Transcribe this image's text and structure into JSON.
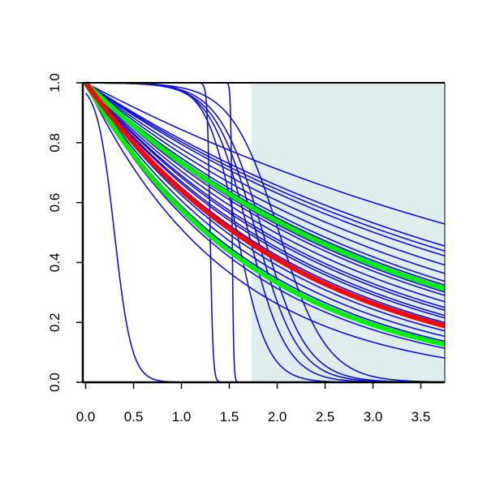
{
  "chart_data": {
    "type": "line",
    "title": "",
    "xlabel": "",
    "ylabel": "",
    "xlim": [
      -0.03,
      3.75
    ],
    "ylim": [
      0.0,
      1.0
    ],
    "x_ticks": [
      "0.0",
      "0.5",
      "1.0",
      "1.5",
      "2.0",
      "2.5",
      "3.0",
      "3.5"
    ],
    "y_ticks": [
      "0.0",
      "0.2",
      "0.4",
      "0.6",
      "0.8",
      "1.0"
    ],
    "grid": false,
    "legend": "none",
    "shaded_region": {
      "x_from": 1.73,
      "x_to": 3.75,
      "color": "#e0eded"
    },
    "colors": {
      "envelope": "#00ee00",
      "mean": "#ff0000",
      "samples": "#1010dd"
    },
    "series": [
      {
        "role": "sample",
        "kind": "exp",
        "rate": 0.17
      },
      {
        "role": "sample",
        "kind": "exp",
        "rate": 0.21
      },
      {
        "role": "sample",
        "kind": "exp",
        "rate": 0.22
      },
      {
        "role": "sample",
        "kind": "exp",
        "rate": 0.23
      },
      {
        "role": "sample",
        "kind": "exp",
        "rate": 0.25
      },
      {
        "role": "sample",
        "kind": "exp",
        "rate": 0.27
      },
      {
        "role": "sample",
        "kind": "exp",
        "rate": 0.29
      },
      {
        "role": "sample",
        "kind": "exp",
        "rate": 0.3
      },
      {
        "role": "sample",
        "kind": "exp",
        "rate": 0.32
      },
      {
        "role": "sample",
        "kind": "exp",
        "rate": 0.33
      },
      {
        "role": "sample",
        "kind": "exp",
        "rate": 0.35
      },
      {
        "role": "sample",
        "kind": "exp",
        "rate": 0.37
      },
      {
        "role": "sample",
        "kind": "exp",
        "rate": 0.38
      },
      {
        "role": "sample",
        "kind": "exp",
        "rate": 0.4
      },
      {
        "role": "sample",
        "kind": "exp",
        "rate": 0.41
      },
      {
        "role": "sample",
        "kind": "exp",
        "rate": 0.43
      },
      {
        "role": "sample",
        "kind": "exp",
        "rate": 0.45
      },
      {
        "role": "sample",
        "kind": "exp",
        "rate": 0.47
      },
      {
        "role": "sample",
        "kind": "exp",
        "rate": 0.5
      },
      {
        "role": "sample",
        "kind": "exp",
        "rate": 0.53
      },
      {
        "role": "sample",
        "kind": "exp",
        "rate": 0.58
      },
      {
        "role": "sample",
        "kind": "exp",
        "rate": 0.67
      },
      {
        "role": "sample",
        "kind": "logistic",
        "mid": 0.3,
        "scale": 0.09
      },
      {
        "role": "sample",
        "kind": "logistic",
        "mid": 1.3,
        "scale": 0.015
      },
      {
        "role": "sample",
        "kind": "logistic",
        "mid": 1.53,
        "scale": 0.008
      },
      {
        "role": "sample",
        "kind": "logistic",
        "mid": 1.58,
        "scale": 0.16
      },
      {
        "role": "sample",
        "kind": "logistic",
        "mid": 1.7,
        "scale": 0.2
      },
      {
        "role": "sample",
        "kind": "logistic",
        "mid": 1.78,
        "scale": 0.22
      },
      {
        "role": "sample",
        "kind": "logistic",
        "mid": 1.85,
        "scale": 0.23
      },
      {
        "role": "sample",
        "kind": "logistic",
        "mid": 2.02,
        "scale": 0.25
      },
      {
        "role": "envelope",
        "kind": "exp",
        "rate": 0.31
      },
      {
        "role": "envelope",
        "kind": "exp",
        "rate": 0.55
      },
      {
        "role": "mean",
        "kind": "exp",
        "rate": 0.445
      }
    ]
  }
}
